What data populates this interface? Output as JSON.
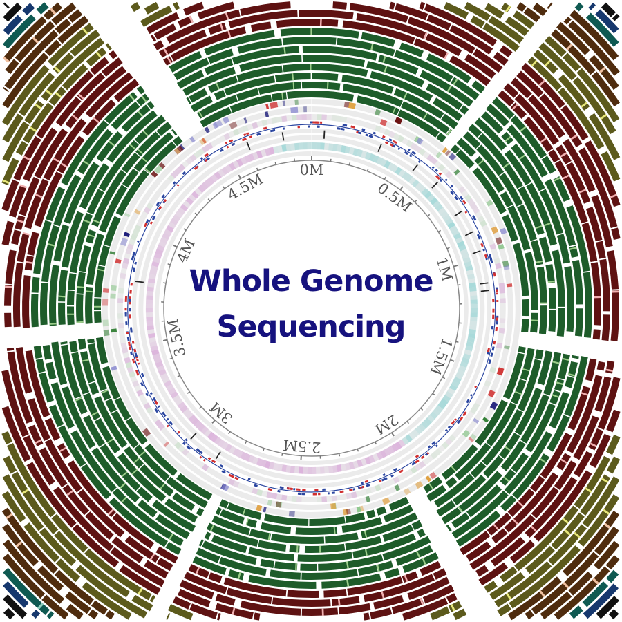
{
  "title": {
    "line1": "Whole Genome",
    "line2": "Sequencing",
    "color": "#16127e"
  },
  "axis": {
    "unit": "M",
    "genome_length_mb": 4.89,
    "tick_labels": [
      {
        "value": 0,
        "label": "0M"
      },
      {
        "value": 0.5,
        "label": "0.5M"
      },
      {
        "value": 1,
        "label": "1M"
      },
      {
        "value": 1.5,
        "label": "1.5M"
      },
      {
        "value": 2,
        "label": "2M"
      },
      {
        "value": 2.5,
        "label": "2.5M"
      },
      {
        "value": 3,
        "label": "3M"
      },
      {
        "value": 3.5,
        "label": "3.5M"
      },
      {
        "value": 4,
        "label": "4M"
      },
      {
        "value": 4.5,
        "label": "4.5M"
      }
    ]
  },
  "track_colors": {
    "outer_groups": [
      "#1e5c2a",
      "#5e1212",
      "#5c5a1c",
      "#4f2c0e",
      "#0f5a52",
      "#16386e",
      "#111111"
    ],
    "heat_cyan": "#8fd3d3",
    "heat_pink": "#d7a2d7",
    "dot_blue": "#2b46a0",
    "dot_red": "#d03030",
    "ring_bg": "#ebebeb"
  }
}
